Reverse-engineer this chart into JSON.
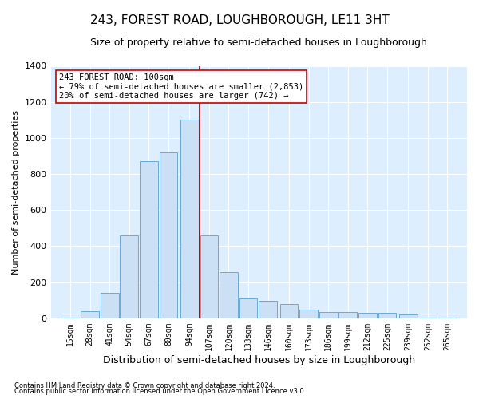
{
  "title": "243, FOREST ROAD, LOUGHBOROUGH, LE11 3HT",
  "subtitle": "Size of property relative to semi-detached houses in Loughborough",
  "xlabel": "Distribution of semi-detached houses by size in Loughborough",
  "ylabel": "Number of semi-detached properties",
  "footer_line1": "Contains HM Land Registry data © Crown copyright and database right 2024.",
  "footer_line2": "Contains public sector information licensed under the Open Government Licence v3.0.",
  "annotation_line1": "243 FOREST ROAD: 100sqm",
  "annotation_line2": "← 79% of semi-detached houses are smaller (2,853)",
  "annotation_line3": "20% of semi-detached houses are larger (742) →",
  "bins": [
    15,
    28,
    41,
    54,
    67,
    80,
    94,
    107,
    120,
    133,
    146,
    160,
    173,
    186,
    199,
    212,
    225,
    239,
    252,
    265
  ],
  "counts": [
    5,
    40,
    140,
    460,
    870,
    920,
    1100,
    460,
    255,
    110,
    95,
    80,
    50,
    35,
    35,
    30,
    30,
    20,
    5,
    5
  ],
  "bar_color": "#cce0f5",
  "bar_edge_color": "#6aaad4",
  "vline_color": "#990000",
  "vline_x": 100.5,
  "annotation_box_facecolor": "#ffffff",
  "annotation_box_edgecolor": "#cc0000",
  "ylim": [
    0,
    1400
  ],
  "yticks": [
    0,
    200,
    400,
    600,
    800,
    1000,
    1200,
    1400
  ],
  "plot_bg_color": "#ddeeff",
  "fig_bg_color": "#ffffff",
  "grid_color": "#ffffff",
  "title_fontsize": 11,
  "subtitle_fontsize": 9,
  "ylabel_fontsize": 8,
  "xlabel_fontsize": 9,
  "tick_fontsize": 7,
  "footer_fontsize": 6,
  "annot_fontsize": 7.5
}
